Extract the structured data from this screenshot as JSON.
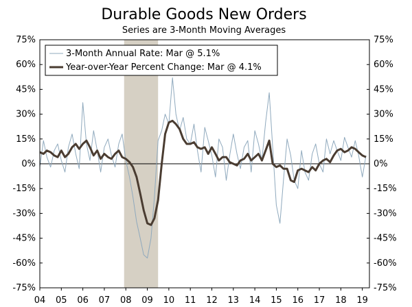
{
  "chart_data": {
    "type": "line",
    "title": "Durable Goods New Orders",
    "subtitle": "Series are 3-Month Moving Averages",
    "ylim": [
      -75,
      75
    ],
    "y_ticks": [
      75,
      60,
      45,
      30,
      15,
      0,
      -15,
      -30,
      -45,
      -60,
      -75
    ],
    "y_tick_labels_left": [
      "75%",
      "60%",
      "45%",
      "30%",
      "15%",
      "0%",
      "-15%",
      "-30%",
      "-45%",
      "-60%",
      "-75%"
    ],
    "y_tick_labels_right": [
      "75%",
      "60%",
      "45%",
      "30%",
      "15%",
      "0%",
      "-15%",
      "-30%",
      "-45%",
      "-60%",
      "-75%"
    ],
    "xlim": [
      2004.0,
      2019.33
    ],
    "x_ticks": [
      2004,
      2005,
      2006,
      2007,
      2008,
      2009,
      2010,
      2011,
      2012,
      2013,
      2014,
      2015,
      2016,
      2017,
      2018,
      2019
    ],
    "x_tick_labels": [
      "04",
      "05",
      "06",
      "07",
      "08",
      "09",
      "10",
      "11",
      "12",
      "13",
      "14",
      "15",
      "16",
      "17",
      "18",
      "19"
    ],
    "recession": {
      "start": 2007.92,
      "end": 2009.5,
      "color": "#d6d0c4"
    },
    "series": [
      {
        "name": "3-Month Annual Rate: Mar @ 5.1%",
        "color": "#8fa9bd",
        "x": [
          2004.0,
          2004.17,
          2004.33,
          2004.5,
          2004.67,
          2004.83,
          2005.0,
          2005.17,
          2005.33,
          2005.5,
          2005.67,
          2005.83,
          2006.0,
          2006.17,
          2006.33,
          2006.5,
          2006.67,
          2006.83,
          2007.0,
          2007.17,
          2007.33,
          2007.5,
          2007.67,
          2007.83,
          2008.0,
          2008.17,
          2008.33,
          2008.5,
          2008.67,
          2008.83,
          2009.0,
          2009.17,
          2009.33,
          2009.5,
          2009.67,
          2009.83,
          2010.0,
          2010.17,
          2010.33,
          2010.5,
          2010.67,
          2010.83,
          2011.0,
          2011.17,
          2011.33,
          2011.5,
          2011.67,
          2011.83,
          2012.0,
          2012.17,
          2012.33,
          2012.5,
          2012.67,
          2012.83,
          2013.0,
          2013.17,
          2013.33,
          2013.5,
          2013.67,
          2013.83,
          2014.0,
          2014.17,
          2014.33,
          2014.5,
          2014.67,
          2014.83,
          2015.0,
          2015.17,
          2015.33,
          2015.5,
          2015.67,
          2015.83,
          2016.0,
          2016.17,
          2016.33,
          2016.5,
          2016.67,
          2016.83,
          2017.0,
          2017.17,
          2017.33,
          2017.5,
          2017.67,
          2017.83,
          2018.0,
          2018.17,
          2018.33,
          2018.5,
          2018.67,
          2018.83,
          2019.0,
          2019.17
        ],
        "values": [
          -2,
          14,
          4,
          -2,
          8,
          12,
          2,
          -5,
          10,
          18,
          6,
          -3,
          37,
          12,
          2,
          20,
          8,
          -5,
          10,
          15,
          5,
          -2,
          12,
          18,
          2,
          -8,
          -20,
          -35,
          -45,
          -55,
          -57,
          -45,
          -20,
          14,
          20,
          30,
          24,
          52,
          30,
          20,
          28,
          15,
          12,
          24,
          8,
          -5,
          22,
          14,
          5,
          -8,
          15,
          10,
          -10,
          5,
          18,
          6,
          -3,
          10,
          14,
          -5,
          20,
          12,
          2,
          25,
          43,
          10,
          -25,
          -36,
          -10,
          15,
          5,
          -10,
          -15,
          8,
          -5,
          -10,
          6,
          12,
          0,
          -5,
          15,
          6,
          14,
          8,
          2,
          16,
          10,
          4,
          14,
          5,
          -8,
          5
        ]
      },
      {
        "name": "Year-over-Year Percent Change: Mar @ 4.1%",
        "color": "#4a3c31",
        "x": [
          2004.0,
          2004.17,
          2004.33,
          2004.5,
          2004.67,
          2004.83,
          2005.0,
          2005.17,
          2005.33,
          2005.5,
          2005.67,
          2005.83,
          2006.0,
          2006.17,
          2006.33,
          2006.5,
          2006.67,
          2006.83,
          2007.0,
          2007.17,
          2007.33,
          2007.5,
          2007.67,
          2007.83,
          2008.0,
          2008.17,
          2008.33,
          2008.5,
          2008.67,
          2008.83,
          2009.0,
          2009.17,
          2009.33,
          2009.5,
          2009.67,
          2009.83,
          2010.0,
          2010.17,
          2010.33,
          2010.5,
          2010.67,
          2010.83,
          2011.0,
          2011.17,
          2011.33,
          2011.5,
          2011.67,
          2011.83,
          2012.0,
          2012.17,
          2012.33,
          2012.5,
          2012.67,
          2012.83,
          2013.0,
          2013.17,
          2013.33,
          2013.5,
          2013.67,
          2013.83,
          2014.0,
          2014.17,
          2014.33,
          2014.5,
          2014.67,
          2014.83,
          2015.0,
          2015.17,
          2015.33,
          2015.5,
          2015.67,
          2015.83,
          2016.0,
          2016.17,
          2016.33,
          2016.5,
          2016.67,
          2016.83,
          2017.0,
          2017.17,
          2017.33,
          2017.5,
          2017.67,
          2017.83,
          2018.0,
          2018.17,
          2018.33,
          2018.5,
          2018.67,
          2018.83,
          2019.0,
          2019.17
        ],
        "values": [
          7,
          6,
          8,
          7,
          5,
          4,
          8,
          4,
          6,
          10,
          12,
          9,
          12,
          14,
          10,
          5,
          8,
          3,
          6,
          4,
          3,
          6,
          8,
          4,
          3,
          1,
          -2,
          -8,
          -18,
          -28,
          -36,
          -37,
          -33,
          -22,
          0,
          18,
          25,
          26,
          24,
          21,
          15,
          12,
          12,
          13,
          10,
          9,
          10,
          6,
          10,
          6,
          2,
          4,
          4,
          1,
          0,
          -1,
          2,
          3,
          6,
          2,
          4,
          6,
          2,
          8,
          14,
          0,
          -2,
          -1,
          -3,
          -3,
          -10,
          -11,
          -4,
          -3,
          -4,
          -5,
          -2,
          -4,
          0,
          2,
          3,
          1,
          5,
          8,
          9,
          7,
          8,
          10,
          9,
          7,
          5,
          4
        ]
      }
    ],
    "legend": {
      "position": "top-left"
    }
  }
}
